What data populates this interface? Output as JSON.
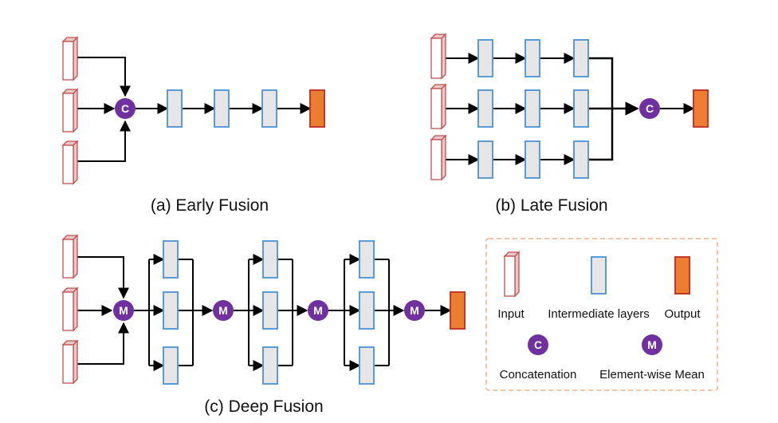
{
  "panels": {
    "early": {
      "caption": "(a) Early Fusion"
    },
    "late": {
      "caption": "(b) Late Fusion"
    },
    "deep": {
      "caption": "(c) Deep Fusion"
    }
  },
  "nodes": {
    "concat_symbol": "C",
    "mean_symbol": "M"
  },
  "legend": {
    "input": "Input",
    "intermediate": "Intermediate layers",
    "output": "Output",
    "concatenation": "Concatenation",
    "mean": "Element-wise Mean"
  },
  "colors": {
    "input_stroke": "#c0504d",
    "input_fill": "#ffffff",
    "input_side": "#e8c8c8",
    "layer_stroke": "#5b9bd5",
    "layer_fill": "#e6e6e6",
    "output_stroke": "#c0392b",
    "output_fill": "#ed7d31",
    "node_fill": "#7030a0",
    "legend_border": "#f4b183",
    "arrow": "#000000"
  }
}
